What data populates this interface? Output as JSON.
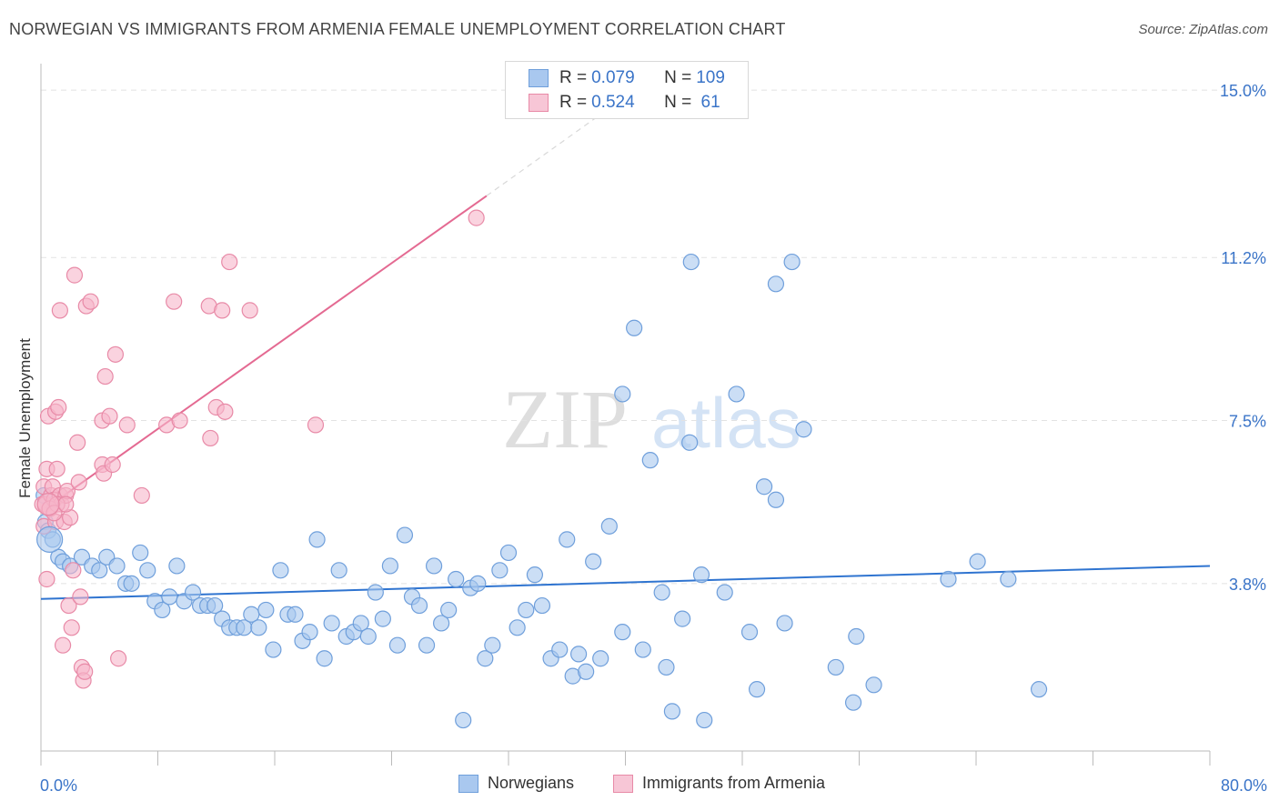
{
  "title": "NORWEGIAN VS IMMIGRANTS FROM ARMENIA FEMALE UNEMPLOYMENT CORRELATION CHART",
  "source": "Source: ZipAtlas.com",
  "watermark": {
    "zip": "ZIP",
    "atlas": "atlas"
  },
  "legend": {
    "rows": [
      {
        "r_label": "R = ",
        "r_value": "0.079",
        "n_label": "N = ",
        "n_value": "109"
      },
      {
        "r_label": "R = ",
        "r_value": "0.524",
        "n_label": "N = ",
        "n_value": " 61"
      }
    ]
  },
  "bottom_legend": {
    "norwegians": "Norwegians",
    "armenia": "Immigrants from Armenia"
  },
  "colors": {
    "blue_fill": "#a9c8ef",
    "blue_stroke": "#6f9fdb",
    "blue_line": "#2f74d0",
    "pink_fill": "#f7b6ca",
    "pink_stroke": "#e88aa7",
    "pink_line": "#e46a92",
    "tick_text": "#3a74c8",
    "grid": "#e2e2e2"
  },
  "chart_data": {
    "type": "scatter",
    "title": "NORWEGIAN VS IMMIGRANTS FROM ARMENIA FEMALE UNEMPLOYMENT CORRELATION CHART",
    "xlabel": "",
    "ylabel": "Female Unemployment",
    "xlim": [
      0,
      80
    ],
    "ylim": [
      0,
      15.6
    ],
    "x_tick_labels": [
      "0.0%",
      "80.0%"
    ],
    "y_ticks": [
      3.8,
      7.5,
      11.2,
      15.0
    ],
    "y_tick_labels": [
      "3.8%",
      "7.5%",
      "11.2%",
      "15.0%"
    ],
    "grid": true,
    "legend_position": "top-center",
    "series": [
      {
        "name": "Norwegians",
        "r": 0.079,
        "n": 109,
        "trend": {
          "x": [
            0,
            80
          ],
          "y": [
            3.45,
            4.2
          ]
        },
        "points": [
          [
            0.2,
            5.8
          ],
          [
            0.3,
            5.2
          ],
          [
            0.5,
            5.0
          ],
          [
            0.8,
            4.8
          ],
          [
            1.2,
            4.4
          ],
          [
            1.5,
            4.3
          ],
          [
            2.0,
            4.2
          ],
          [
            2.8,
            4.4
          ],
          [
            3.5,
            4.2
          ],
          [
            4.0,
            4.1
          ],
          [
            4.5,
            4.4
          ],
          [
            5.2,
            4.2
          ],
          [
            5.8,
            3.8
          ],
          [
            6.2,
            3.8
          ],
          [
            6.8,
            4.5
          ],
          [
            7.3,
            4.1
          ],
          [
            7.8,
            3.4
          ],
          [
            8.3,
            3.2
          ],
          [
            8.8,
            3.5
          ],
          [
            9.3,
            4.2
          ],
          [
            9.8,
            3.4
          ],
          [
            10.4,
            3.6
          ],
          [
            10.9,
            3.3
          ],
          [
            11.4,
            3.3
          ],
          [
            11.9,
            3.3
          ],
          [
            12.4,
            3.0
          ],
          [
            12.9,
            2.8
          ],
          [
            13.4,
            2.8
          ],
          [
            13.9,
            2.8
          ],
          [
            14.4,
            3.1
          ],
          [
            14.9,
            2.8
          ],
          [
            15.4,
            3.2
          ],
          [
            15.9,
            2.3
          ],
          [
            16.4,
            4.1
          ],
          [
            16.9,
            3.1
          ],
          [
            17.4,
            3.1
          ],
          [
            17.9,
            2.5
          ],
          [
            18.4,
            2.7
          ],
          [
            18.9,
            4.8
          ],
          [
            19.4,
            2.1
          ],
          [
            19.9,
            2.9
          ],
          [
            20.4,
            4.1
          ],
          [
            20.9,
            2.6
          ],
          [
            21.4,
            2.7
          ],
          [
            21.9,
            2.9
          ],
          [
            22.4,
            2.6
          ],
          [
            22.9,
            3.6
          ],
          [
            23.4,
            3.0
          ],
          [
            23.9,
            4.2
          ],
          [
            24.4,
            2.4
          ],
          [
            24.9,
            4.9
          ],
          [
            25.4,
            3.5
          ],
          [
            25.9,
            3.3
          ],
          [
            26.4,
            2.4
          ],
          [
            26.9,
            4.2
          ],
          [
            27.4,
            2.9
          ],
          [
            27.9,
            3.2
          ],
          [
            28.4,
            3.9
          ],
          [
            28.9,
            0.7
          ],
          [
            29.4,
            3.7
          ],
          [
            29.9,
            3.8
          ],
          [
            30.4,
            2.1
          ],
          [
            30.9,
            2.4
          ],
          [
            31.4,
            4.1
          ],
          [
            32.0,
            4.5
          ],
          [
            32.6,
            2.8
          ],
          [
            33.2,
            3.2
          ],
          [
            33.8,
            4.0
          ],
          [
            34.3,
            3.3
          ],
          [
            34.9,
            2.1
          ],
          [
            35.5,
            2.3
          ],
          [
            36.0,
            4.8
          ],
          [
            36.4,
            1.7
          ],
          [
            36.8,
            2.2
          ],
          [
            37.3,
            1.8
          ],
          [
            37.8,
            4.3
          ],
          [
            38.3,
            2.1
          ],
          [
            38.9,
            5.1
          ],
          [
            39.8,
            8.1
          ],
          [
            39.8,
            2.7
          ],
          [
            40.6,
            9.6
          ],
          [
            41.2,
            2.3
          ],
          [
            41.7,
            6.6
          ],
          [
            42.5,
            3.6
          ],
          [
            42.8,
            1.9
          ],
          [
            43.2,
            0.9
          ],
          [
            43.9,
            3.0
          ],
          [
            44.4,
            7.0
          ],
          [
            44.5,
            11.1
          ],
          [
            45.2,
            4.0
          ],
          [
            45.4,
            0.7
          ],
          [
            46.8,
            3.6
          ],
          [
            47.6,
            8.1
          ],
          [
            48.5,
            2.7
          ],
          [
            49.0,
            1.4
          ],
          [
            49.5,
            6.0
          ],
          [
            50.3,
            5.7
          ],
          [
            50.3,
            10.6
          ],
          [
            50.9,
            2.9
          ],
          [
            51.4,
            11.1
          ],
          [
            52.2,
            7.3
          ],
          [
            54.4,
            1.9
          ],
          [
            55.6,
            1.1
          ],
          [
            55.8,
            2.6
          ],
          [
            57.0,
            1.5
          ],
          [
            62.1,
            3.9
          ],
          [
            64.1,
            4.3
          ],
          [
            66.2,
            3.9
          ],
          [
            68.3,
            1.4
          ]
        ]
      },
      {
        "name": "Immigrants from Armenia",
        "r": 0.524,
        "n": 61,
        "trend": {
          "x": [
            0.3,
            30.5
          ],
          "y": [
            5.5,
            12.6
          ]
        },
        "trend_extension": {
          "x": [
            30.5,
            40.0
          ],
          "y": [
            12.6,
            14.85
          ]
        },
        "points": [
          [
            0.1,
            5.6
          ],
          [
            0.2,
            6.0
          ],
          [
            0.2,
            5.1
          ],
          [
            0.3,
            5.6
          ],
          [
            0.4,
            6.4
          ],
          [
            0.4,
            3.9
          ],
          [
            0.5,
            7.6
          ],
          [
            0.6,
            5.5
          ],
          [
            0.7,
            5.8
          ],
          [
            0.8,
            6.0
          ],
          [
            0.9,
            5.7
          ],
          [
            1.0,
            5.2
          ],
          [
            1.0,
            7.7
          ],
          [
            1.1,
            6.4
          ],
          [
            1.2,
            7.8
          ],
          [
            1.3,
            5.8
          ],
          [
            1.4,
            5.6
          ],
          [
            1.5,
            2.4
          ],
          [
            1.6,
            5.2
          ],
          [
            1.7,
            5.8
          ],
          [
            1.8,
            5.9
          ],
          [
            1.9,
            3.3
          ],
          [
            2.0,
            5.3
          ],
          [
            2.1,
            2.8
          ],
          [
            2.2,
            4.1
          ],
          [
            2.3,
            10.8
          ],
          [
            2.5,
            7.0
          ],
          [
            2.6,
            6.1
          ],
          [
            2.7,
            3.5
          ],
          [
            2.8,
            1.9
          ],
          [
            2.9,
            1.6
          ],
          [
            3.0,
            1.8
          ],
          [
            1.3,
            10.0
          ],
          [
            3.1,
            10.1
          ],
          [
            3.4,
            10.2
          ],
          [
            4.2,
            7.5
          ],
          [
            4.2,
            6.5
          ],
          [
            4.3,
            6.3
          ],
          [
            4.4,
            8.5
          ],
          [
            4.7,
            7.6
          ],
          [
            4.9,
            6.5
          ],
          [
            5.1,
            9.0
          ],
          [
            5.3,
            2.1
          ],
          [
            5.9,
            7.4
          ],
          [
            6.9,
            5.8
          ],
          [
            8.6,
            7.4
          ],
          [
            9.1,
            10.2
          ],
          [
            9.5,
            7.5
          ],
          [
            11.5,
            10.1
          ],
          [
            11.6,
            7.1
          ],
          [
            12.0,
            7.8
          ],
          [
            12.4,
            10.0
          ],
          [
            12.6,
            7.7
          ],
          [
            12.9,
            11.1
          ],
          [
            14.3,
            10.0
          ],
          [
            18.8,
            7.4
          ],
          [
            29.8,
            12.1
          ],
          [
            0.6,
            5.5
          ],
          [
            1.1,
            5.6
          ],
          [
            0.9,
            5.4
          ],
          [
            1.7,
            5.6
          ]
        ]
      }
    ]
  }
}
